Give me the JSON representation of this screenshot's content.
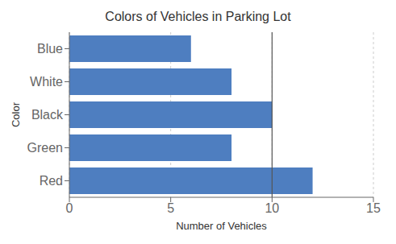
{
  "chart_data": {
    "type": "bar",
    "orientation": "horizontal",
    "title": "Colors of Vehicles in Parking Lot",
    "categories": [
      "Blue",
      "White",
      "Black",
      "Green",
      "Red"
    ],
    "values": [
      6,
      8,
      10,
      8,
      12
    ],
    "color": "#4E7EC0",
    "xlabel": "Number  of Vehicles",
    "ylabel": "Color",
    "xlim": [
      0,
      15
    ],
    "xticks": [
      0,
      5,
      10,
      15
    ],
    "grid": true,
    "reference_line": 10
  }
}
